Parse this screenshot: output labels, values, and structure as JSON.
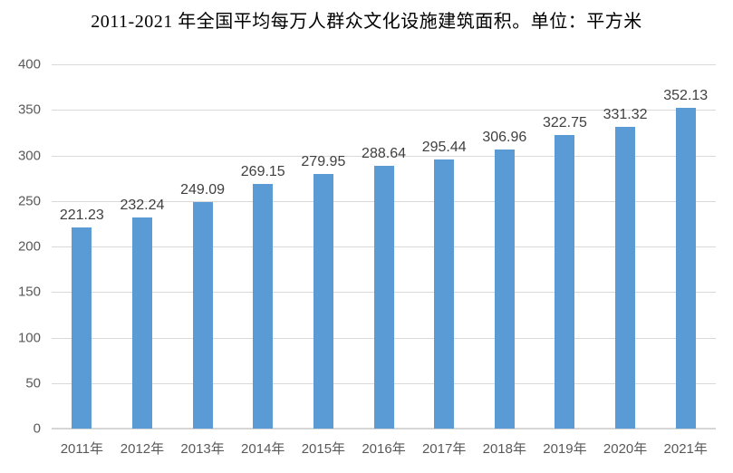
{
  "chart_data": {
    "type": "bar",
    "title": "2011-2021 年全国平均每万人群众文化设施建筑面积。单位：平方米",
    "categories": [
      "2011年",
      "2012年",
      "2013年",
      "2014年",
      "2015年",
      "2016年",
      "2017年",
      "2018年",
      "2019年",
      "2020年",
      "2021年"
    ],
    "values": [
      221.23,
      232.24,
      249.09,
      269.15,
      279.95,
      288.64,
      295.44,
      306.96,
      322.75,
      331.32,
      352.13
    ],
    "data_labels": [
      "221.23",
      "232.24",
      "249.09",
      "269.15",
      "279.95",
      "288.64",
      "295.44",
      "306.96",
      "322.75",
      "331.32",
      "352.13"
    ],
    "xlabel": "",
    "ylabel": "",
    "ylim": [
      0,
      400
    ],
    "yticks": [
      0,
      50,
      100,
      150,
      200,
      250,
      300,
      350,
      400
    ],
    "grid": true,
    "legend": "none",
    "colors": {
      "bar": "#5B9BD5",
      "gridline": "#D9D9D9",
      "axis_line": "#D6D6D6",
      "tick_label": "#595959",
      "data_label": "#404040",
      "title": "#000000"
    }
  }
}
